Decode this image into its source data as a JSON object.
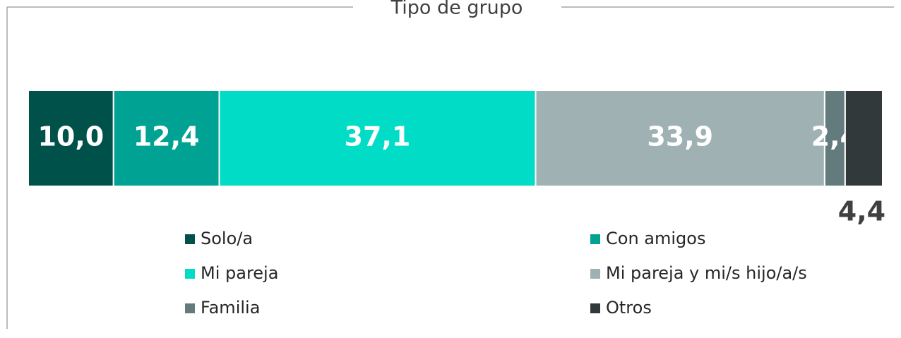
{
  "chart_data": {
    "type": "stacked-bar-100",
    "title": "Tipo de grupo",
    "series": [
      {
        "name": "Solo/a",
        "color": "#00514a",
        "values": [
          10.0
        ],
        "value_labels": [
          "10,0"
        ]
      },
      {
        "name": "Con amigos",
        "color": "#00a393",
        "values": [
          12.4
        ],
        "value_labels": [
          "12,4"
        ]
      },
      {
        "name": "Mi pareja",
        "color": "#00dcc5",
        "values": [
          37.1
        ],
        "value_labels": [
          "37,1"
        ]
      },
      {
        "name": "Mi pareja y mi/s hijo/a/s",
        "color": "#9fb1b3",
        "values": [
          33.9
        ],
        "value_labels": [
          "33,9"
        ]
      },
      {
        "name": "Familia",
        "color": "#637b7d",
        "values": [
          2.4
        ],
        "value_labels": [
          "2,4"
        ]
      },
      {
        "name": "Otros",
        "color": "#31393b",
        "values": [
          4.4
        ],
        "value_labels": [
          "4,4"
        ]
      }
    ]
  }
}
